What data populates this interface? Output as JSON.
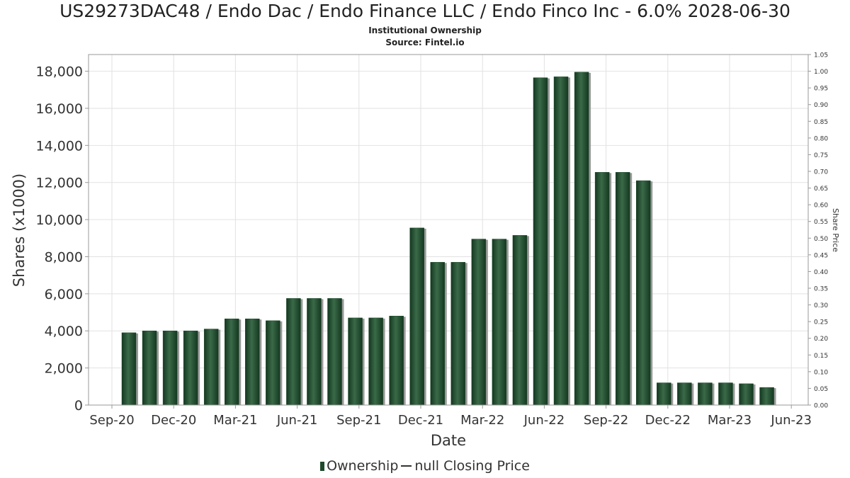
{
  "chart_data": {
    "type": "bar",
    "title": "US29273DAC48 / Endo Dac / Endo Finance LLC / Endo Finco Inc - 6.0% 2028-06-30",
    "subtitle_lines": [
      "Institutional Ownership",
      "Source: Fintel.io"
    ],
    "xlabel": "Date",
    "ylabel": "Shares (x1000)",
    "y2label": "Share Price",
    "x_tick_labels": [
      "Sep-20",
      "Dec-20",
      "Mar-21",
      "Jun-21",
      "Sep-21",
      "Dec-21",
      "Mar-22",
      "Jun-22",
      "Sep-22",
      "Dec-22",
      "Mar-23",
      "Jun-23"
    ],
    "y_ticks": [
      0,
      2000,
      4000,
      6000,
      8000,
      10000,
      12000,
      14000,
      16000,
      18000
    ],
    "y_tick_labels": [
      "0",
      "2,000",
      "4,000",
      "6,000",
      "8,000",
      "10,000",
      "12,000",
      "14,000",
      "16,000",
      "18,000"
    ],
    "ylim": [
      0,
      18900
    ],
    "y2_ticks": [
      "0.00",
      "0.05",
      "0.10",
      "0.15",
      "0.20",
      "0.25",
      "0.30",
      "0.35",
      "0.40",
      "0.45",
      "0.50",
      "0.55",
      "0.60",
      "0.65",
      "0.70",
      "0.75",
      "0.80",
      "0.85",
      "0.90",
      "0.95",
      "1.00",
      "1.05"
    ],
    "y2lim": [
      0,
      1.05
    ],
    "grid": true,
    "legend_position": "bottom-center",
    "series": [
      {
        "name": "Ownership",
        "color": "#1e4a2a",
        "values": [
          3900,
          4000,
          4000,
          4000,
          4100,
          4650,
          4650,
          4550,
          5750,
          5750,
          5750,
          4700,
          4700,
          4800,
          9550,
          7700,
          7700,
          8950,
          8950,
          9150,
          17650,
          17700,
          17950,
          12550,
          12550,
          12100,
          1200,
          1200,
          1200,
          1200,
          1150,
          950
        ]
      }
    ],
    "legend_entries": [
      {
        "label": "Ownership",
        "kind": "bar"
      },
      {
        "label": "null Closing Price",
        "kind": "line"
      }
    ]
  }
}
